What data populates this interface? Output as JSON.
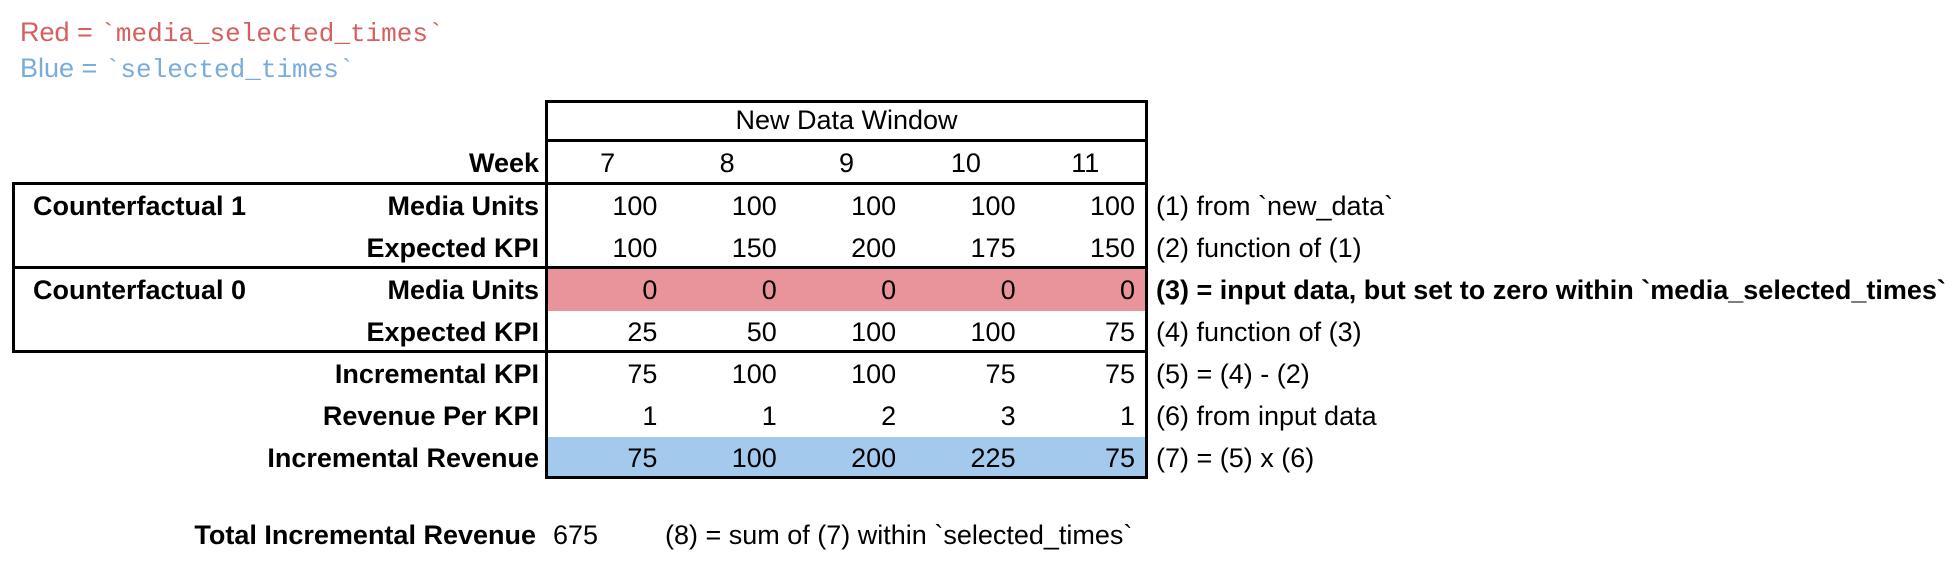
{
  "legend": {
    "red": {
      "label": "Red",
      "eq": " = ",
      "code": "`media_selected_times`"
    },
    "blue": {
      "label": "Blue",
      "eq": " = ",
      "code": "`selected_times`"
    }
  },
  "colors": {
    "red_text": "#d65f5f",
    "blue_text": "#77acdd",
    "red_highlight": "#e9949b",
    "blue_highlight": "#a3c9ed"
  },
  "styles": {
    "red_text": "color:#d65f5f",
    "blue_text": "color:#77acdd",
    "red_band": "background-color:#e9949b",
    "blue_band": "background-color:#a3c9ed"
  },
  "table": {
    "window_title": "New Data Window",
    "week_label": "Week",
    "weeks": [
      "7",
      "8",
      "9",
      "10",
      "11"
    ],
    "groups": [
      {
        "label": "Counterfactual 1"
      },
      {
        "label": "Counterfactual 0"
      }
    ],
    "rows": [
      {
        "label": "Media Units",
        "values": [
          "100",
          "100",
          "100",
          "100",
          "100"
        ],
        "highlight": "none"
      },
      {
        "label": "Expected KPI",
        "values": [
          "100",
          "150",
          "200",
          "175",
          "150"
        ],
        "highlight": "none"
      },
      {
        "label": "Media Units",
        "values": [
          "0",
          "0",
          "0",
          "0",
          "0"
        ],
        "highlight": "red"
      },
      {
        "label": "Expected KPI",
        "values": [
          "25",
          "50",
          "100",
          "100",
          "75"
        ],
        "highlight": "none"
      },
      {
        "label": "Incremental KPI",
        "values": [
          "75",
          "100",
          "100",
          "75",
          "75"
        ],
        "highlight": "none"
      },
      {
        "label": "Revenue Per KPI",
        "values": [
          "1",
          "1",
          "2",
          "3",
          "1"
        ],
        "highlight": "none"
      },
      {
        "label": "Incremental Revenue",
        "values": [
          "75",
          "100",
          "200",
          "225",
          "75"
        ],
        "highlight": "blue"
      }
    ]
  },
  "annotations": [
    "(1) from `new_data`",
    "(2) function of (1)",
    "(3) = input data, but set to zero within `media_selected_times`",
    "(4) function of (3)",
    "(5) = (4) - (2)",
    "(6) from input data",
    "(7) = (5) x (6)"
  ],
  "total": {
    "label": "Total Incremental Revenue",
    "value": "675",
    "note": "(8) = sum of (7) within `selected_times`"
  }
}
